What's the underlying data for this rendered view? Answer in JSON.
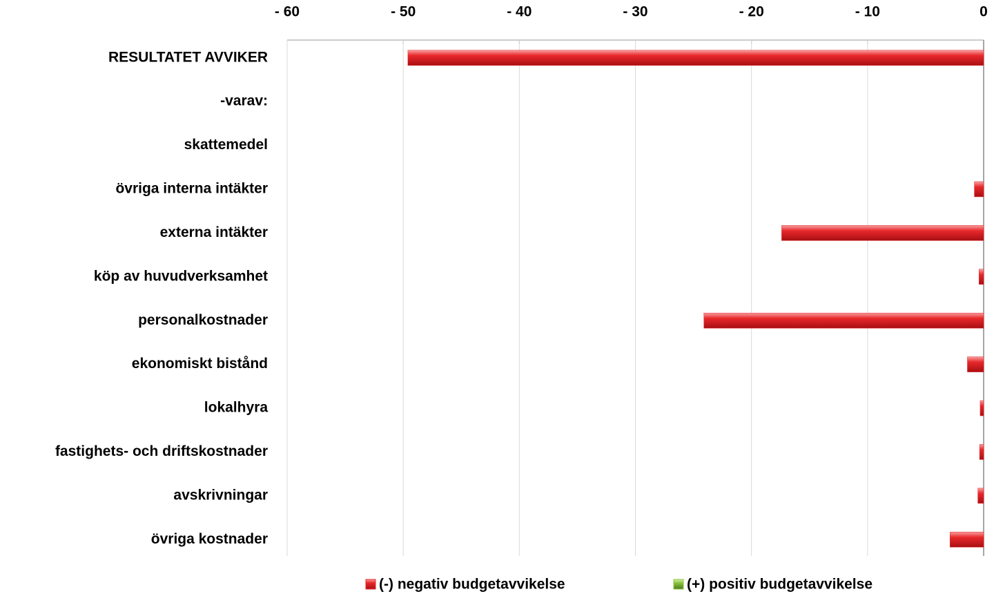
{
  "chart_data": {
    "type": "bar",
    "orientation": "horizontal",
    "categories": [
      "RESULTATET AVVIKER",
      "-varav:",
      "skattemedel",
      "övriga interna intäkter",
      "externa intäkter",
      "köp av huvudverksamhet",
      "personalkostnader",
      "ekonomiskt bistånd",
      "lokalhyra",
      "fastighets- och driftskostnader",
      "avskrivningar",
      "övriga kostnader"
    ],
    "series": [
      {
        "name": "(-) negativ budgetavvikelse",
        "color": "#e8282b",
        "values": [
          -49.6,
          null,
          null,
          -0.8,
          -17.4,
          -0.4,
          -24.1,
          -1.4,
          -0.3,
          -0.35,
          -0.5,
          -2.9
        ]
      },
      {
        "name": "(+) positiv budgetavvikelse",
        "color": "#8cc63f",
        "values": [
          null,
          null,
          null,
          null,
          null,
          null,
          null,
          null,
          null,
          null,
          null,
          null
        ]
      }
    ],
    "xlim": [
      -60,
      0
    ],
    "xticks": [
      {
        "value": -60,
        "label": "- 60"
      },
      {
        "value": -50,
        "label": "- 50"
      },
      {
        "value": -40,
        "label": "- 40"
      },
      {
        "value": -30,
        "label": "- 30"
      },
      {
        "value": -20,
        "label": "- 20"
      },
      {
        "value": -10,
        "label": "- 10"
      },
      0
    ],
    "grid": true,
    "legend": "bottom"
  }
}
